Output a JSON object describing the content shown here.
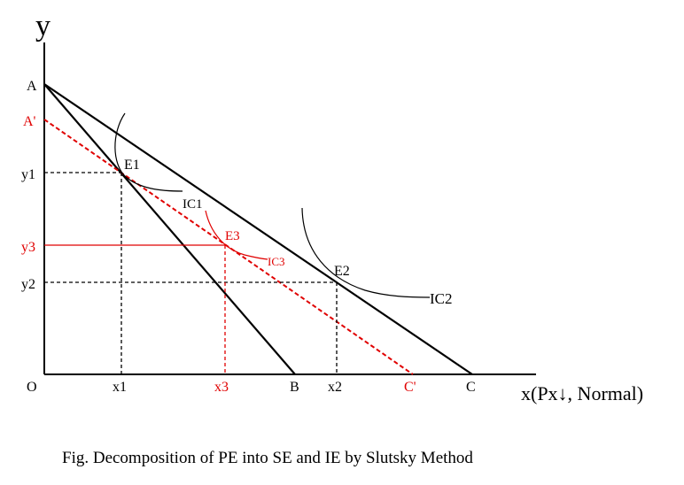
{
  "axes": {
    "y_label": "y",
    "x_label": "x(Px↓, Normal)",
    "origin": "O"
  },
  "ticks": {
    "y": {
      "a": "A",
      "a_prime": "A'",
      "y1": "y1",
      "y3": "y3",
      "y2": "y2"
    },
    "x": {
      "x1": "x1",
      "x3": "x3",
      "b": "B",
      "x2": "x2",
      "c_prime": "C'",
      "c": "C"
    }
  },
  "points": {
    "e1": "E1",
    "e2": "E2",
    "e3": "E3"
  },
  "curves": {
    "ic1": "IC1",
    "ic2": "IC2",
    "ic3": "IC3"
  },
  "caption": "Fig. Decomposition of PE into SE and IE by Slutsky Method",
  "colors": {
    "ink": "#000000",
    "compensated": "#e00000"
  }
}
